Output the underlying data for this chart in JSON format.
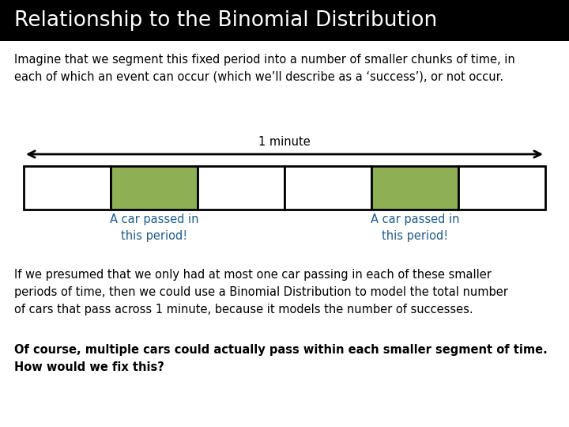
{
  "title": "Relationship to the Binomial Distribution",
  "title_bg": "#000000",
  "title_color": "#ffffff",
  "title_fontsize": 19,
  "body_bg": "#ffffff",
  "intro_text": "Imagine that we segment this fixed period into a number of smaller chunks of time, in\neach of which an event can occur (which we’ll describe as a ‘success’), or not occur.",
  "minute_label": "1 minute",
  "segment_colors": [
    "#ffffff",
    "#8faf55",
    "#ffffff",
    "#ffffff",
    "#8faf55",
    "#ffffff"
  ],
  "segment_border": "#000000",
  "car_label_color": "#1f5c8b",
  "car_label_1": "A car passed in\nthis period!",
  "car_label_2": "A car passed in\nthis period!",
  "body_text_1": "If we presumed that we only had at most one car passing in each of these smaller\nperiods of time, then we could use a Binomial Distribution to model the total number\nof cars that pass across 1 minute, because it models the number of successes.",
  "body_text_2": "Of course, multiple cars could actually pass within each smaller segment of time.\nHow would we fix this?",
  "text_fontsize": 10.5,
  "bold_fontsize": 10.5,
  "intro_fontsize": 10.5
}
